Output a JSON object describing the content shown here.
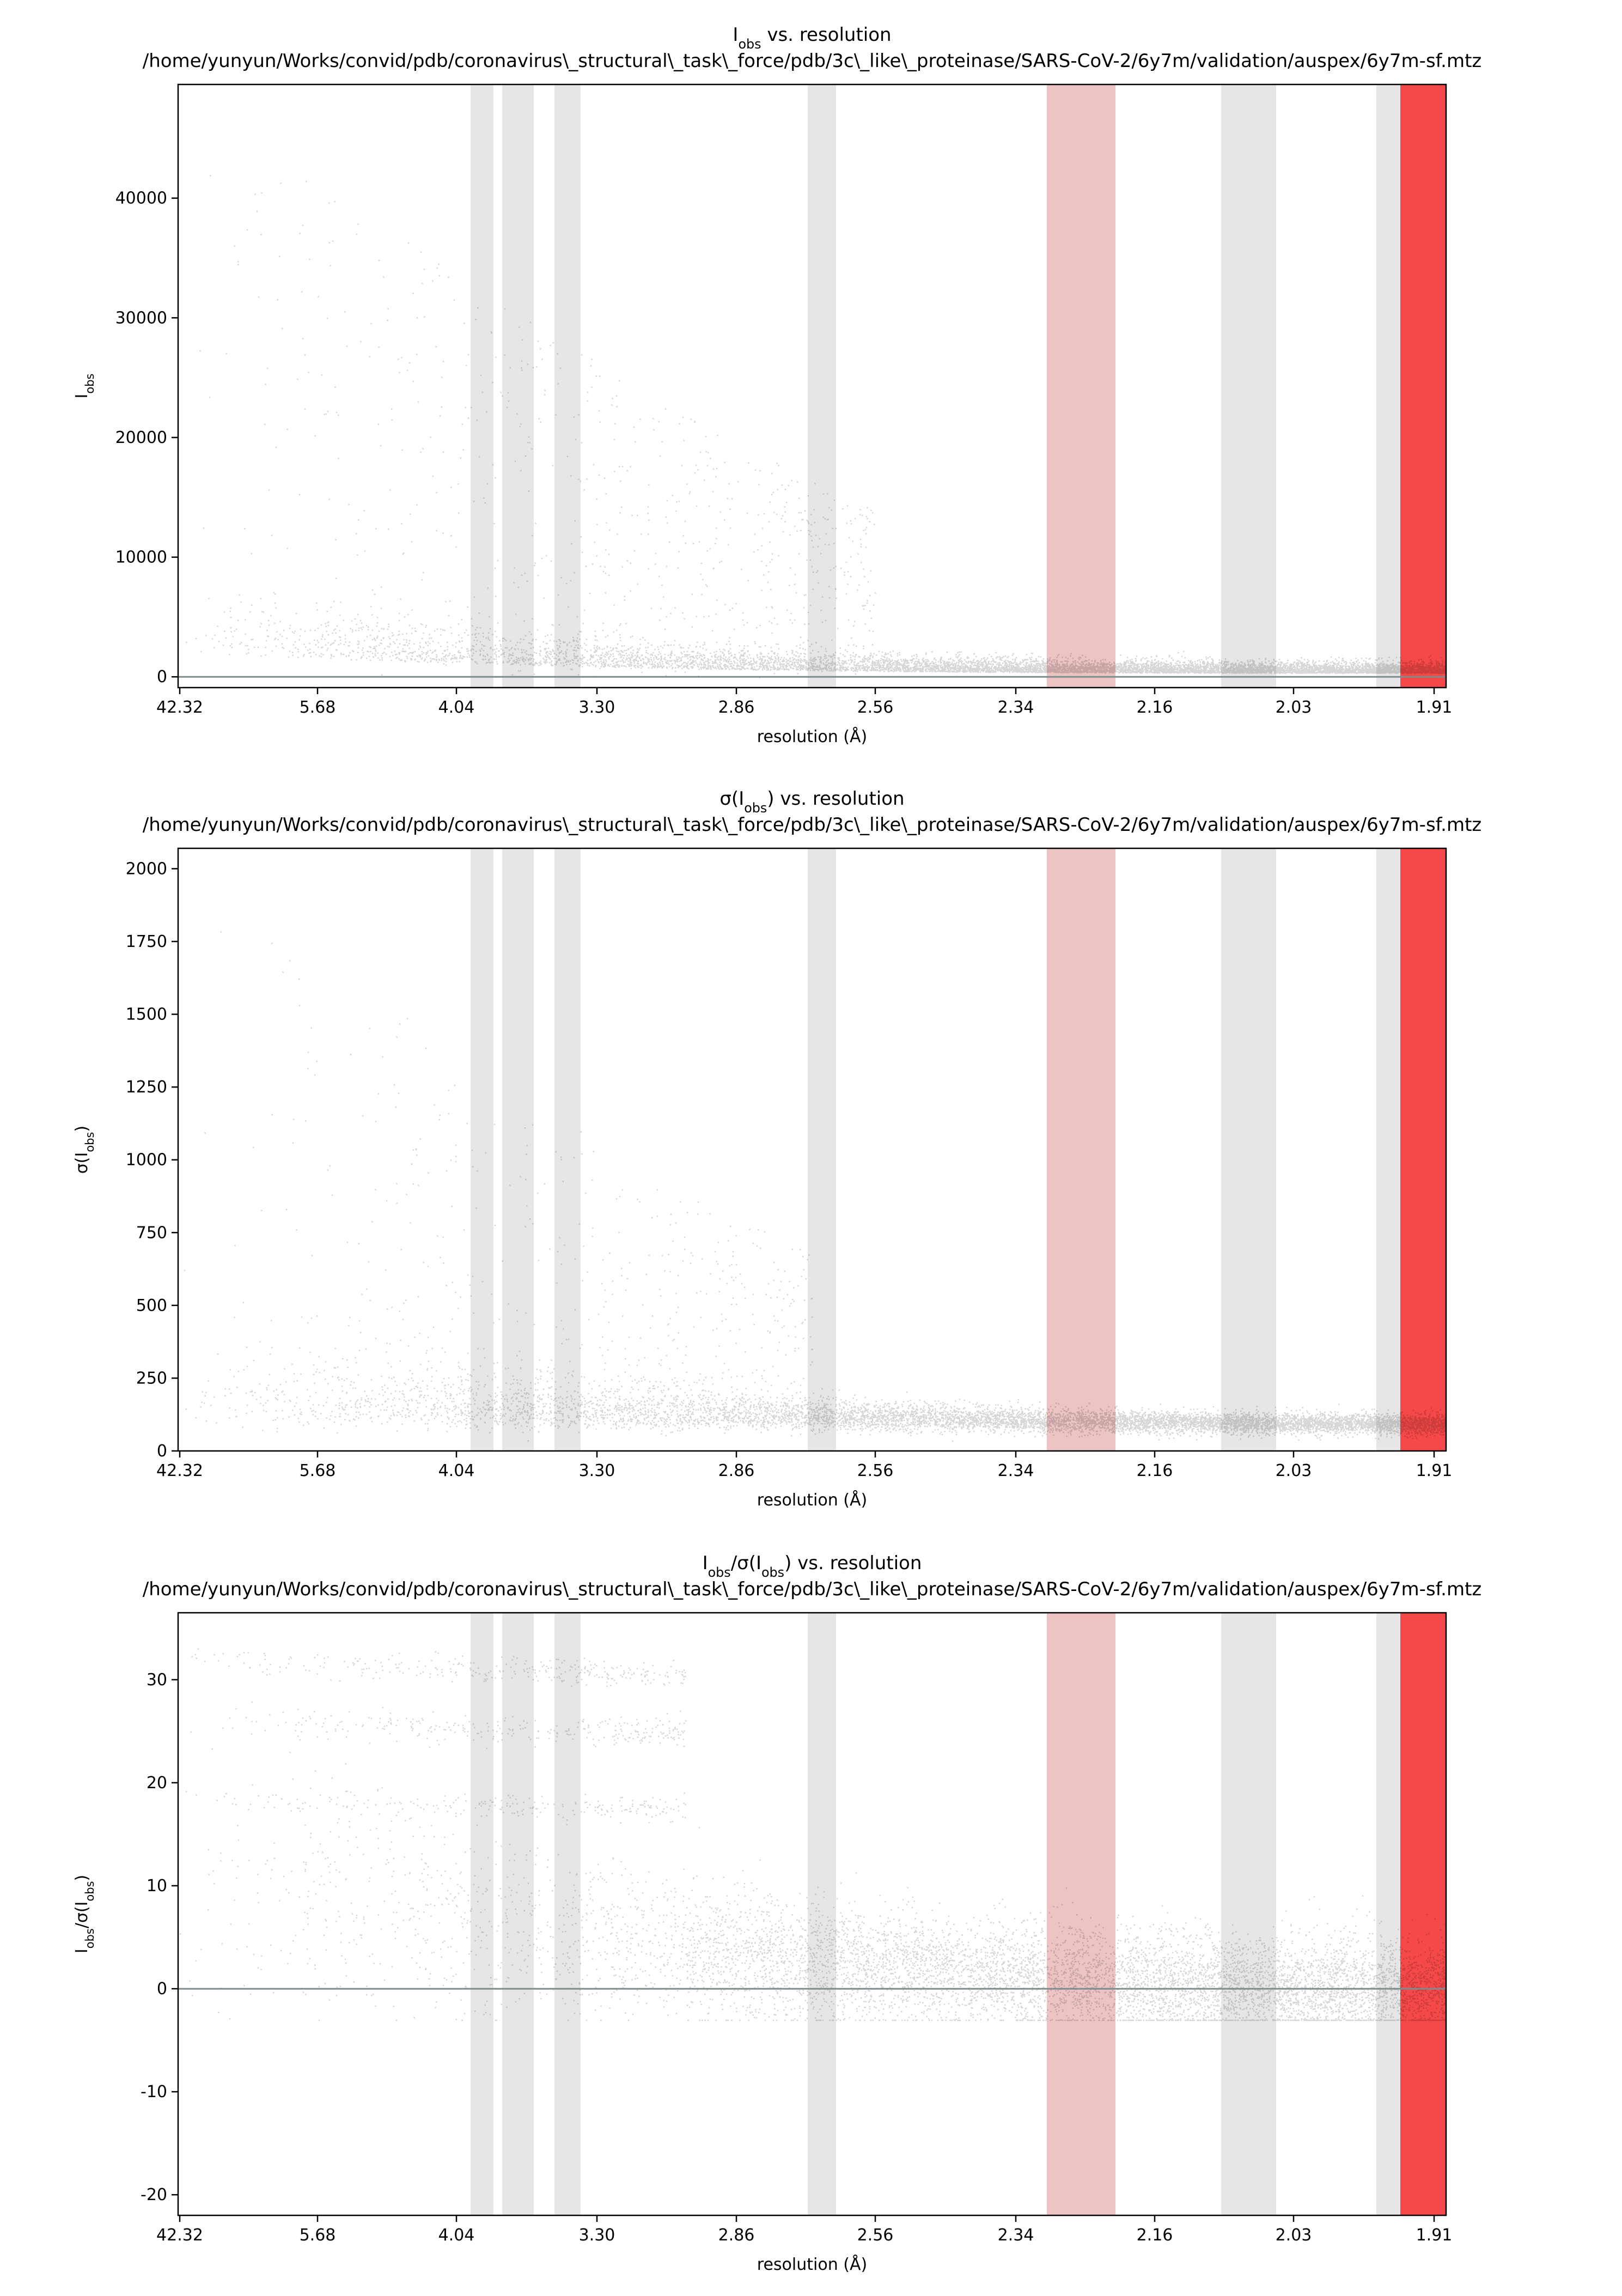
{
  "figure": {
    "file_path": "/home/yunyun/Works/convid/pdb/coronavirus\\_structural\\_task\\_force/pdb/3c\\_like\\_proteinase/SARS-CoV-2/6y7m/validation/auspex/6y7m-sf.mtz"
  },
  "chart_data": [
    {
      "type": "scatter",
      "title_main": "I",
      "title_sub": "obs",
      "title_rest": " vs. resolution",
      "xlabel": "resolution (Å)",
      "ylabel_main": "I",
      "ylabel_sub": "obs",
      "x_ticks": [
        "42.32",
        "5.68",
        "4.04",
        "3.30",
        "2.86",
        "2.56",
        "2.34",
        "2.16",
        "2.03",
        "1.91"
      ],
      "y_ticks": [
        0,
        10000,
        20000,
        30000,
        40000
      ],
      "ylim": [
        -900,
        49500
      ],
      "zero_line": true,
      "density": "dense scatter; high-intensity spread at low resolution, decaying toward ~500 at 1.91 Å",
      "colors": {
        "points": "#000000",
        "ice_ring": "#e6e6e6",
        "ice_ring_flagged": "#edc4c4",
        "high_res_flag": "#f54848"
      }
    },
    {
      "type": "scatter",
      "title_main": "σ(I",
      "title_sub": "obs",
      "title_rest": ") vs. resolution",
      "xlabel": "resolution (Å)",
      "ylabel_main": "σ(I",
      "ylabel_sub": "obs",
      "ylabel_rest": ")",
      "x_ticks": [
        "42.32",
        "5.68",
        "4.04",
        "3.30",
        "2.86",
        "2.56",
        "2.34",
        "2.16",
        "2.03",
        "1.91"
      ],
      "y_ticks": [
        0,
        250,
        500,
        750,
        1000,
        1250,
        1500,
        1750,
        2000
      ],
      "ylim": [
        0,
        2070
      ],
      "zero_line": false,
      "density": "dense scatter; band near 90-100 across resolution with wider spread at low resolution"
    },
    {
      "type": "scatter",
      "title_main": "I",
      "title_sub": "obs",
      "title_rest": "/σ(I",
      "title_sub2": "obs",
      "title_rest2": ") vs. resolution",
      "xlabel": "resolution (Å)",
      "ylabel_main": "I",
      "ylabel_sub": "obs",
      "ylabel_rest": "/σ(I",
      "ylabel_sub2": "obs",
      "ylabel_rest2": ")",
      "x_ticks": [
        "42.32",
        "5.68",
        "4.04",
        "3.30",
        "2.86",
        "2.56",
        "2.34",
        "2.16",
        "2.03",
        "1.91"
      ],
      "y_ticks": [
        -20,
        -10,
        0,
        10,
        20,
        30
      ],
      "ylim": [
        -22,
        36.5
      ],
      "zero_line": true,
      "density": "dense scatter; three bands at ~32, ~26, ~18.5 at low resolution, decaying toward ~0 at 1.91 Å"
    }
  ]
}
